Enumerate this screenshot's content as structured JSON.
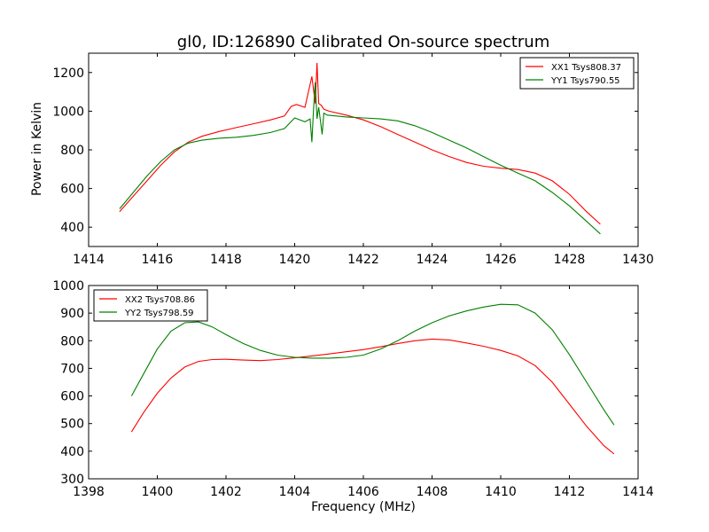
{
  "figure": {
    "title": "gl0, ID:126890 Calibrated On-source spectrum",
    "ylabel": "Power in Kelvin",
    "xlabel": "Frequency (MHz)"
  },
  "chart_data": [
    {
      "type": "line",
      "title": "gl0, ID:126890 Calibrated On-source spectrum",
      "ylabel": "Power in Kelvin",
      "xlim": [
        1414,
        1430
      ],
      "ylim": [
        300,
        1300
      ],
      "xticks": [
        1414,
        1416,
        1418,
        1420,
        1422,
        1424,
        1426,
        1428,
        1430
      ],
      "yticks": [
        400,
        600,
        800,
        1000,
        1200
      ],
      "grid": false,
      "legend": "top-right",
      "series": [
        {
          "name": "XX1 Tsys808.37",
          "color": "#ff0000",
          "x": [
            1414.9,
            1415.3,
            1415.7,
            1416.1,
            1416.5,
            1416.9,
            1417.3,
            1417.8,
            1418.3,
            1418.8,
            1419.3,
            1419.7,
            1419.9,
            1420.05,
            1420.3,
            1420.5,
            1420.6,
            1420.65,
            1420.7,
            1420.78,
            1420.85,
            1421.0,
            1421.5,
            1422.0,
            1422.5,
            1423.0,
            1423.5,
            1424.0,
            1424.5,
            1425.0,
            1425.5,
            1426.0,
            1426.5,
            1427.0,
            1427.5,
            1428.0,
            1428.5,
            1428.9
          ],
          "y": [
            480,
            560,
            640,
            720,
            790,
            840,
            870,
            895,
            915,
            935,
            955,
            975,
            1025,
            1035,
            1020,
            1180,
            1040,
            1250,
            1040,
            1030,
            1010,
            1000,
            980,
            955,
            920,
            880,
            840,
            800,
            765,
            735,
            715,
            705,
            698,
            680,
            640,
            570,
            480,
            415
          ]
        },
        {
          "name": "YY1 Tsys790.55",
          "color": "#008000",
          "x": [
            1414.9,
            1415.3,
            1415.7,
            1416.1,
            1416.5,
            1416.9,
            1417.3,
            1417.8,
            1418.3,
            1418.8,
            1419.3,
            1419.7,
            1420.0,
            1420.3,
            1420.45,
            1420.5,
            1420.55,
            1420.6,
            1420.65,
            1420.7,
            1420.8,
            1420.85,
            1420.95,
            1421.5,
            1422.0,
            1422.5,
            1423.0,
            1423.5,
            1424.0,
            1424.5,
            1425.0,
            1425.5,
            1426.0,
            1426.5,
            1427.0,
            1427.5,
            1428.0,
            1428.5,
            1428.9
          ],
          "y": [
            495,
            580,
            665,
            740,
            800,
            835,
            850,
            860,
            865,
            875,
            890,
            910,
            965,
            945,
            960,
            840,
            1010,
            1150,
            960,
            1020,
            880,
            990,
            980,
            970,
            965,
            960,
            950,
            925,
            890,
            850,
            810,
            765,
            720,
            680,
            640,
            580,
            510,
            430,
            365
          ]
        }
      ]
    },
    {
      "type": "line",
      "xlabel": "Frequency (MHz)",
      "xlim": [
        1398,
        1414
      ],
      "ylim": [
        300,
        1000
      ],
      "xticks": [
        1398,
        1400,
        1402,
        1404,
        1406,
        1408,
        1410,
        1412,
        1414
      ],
      "yticks": [
        300,
        400,
        500,
        600,
        700,
        800,
        900,
        1000
      ],
      "grid": false,
      "legend": "top-left",
      "series": [
        {
          "name": "XX2 Tsys708.86",
          "color": "#ff0000",
          "x": [
            1399.25,
            1399.6,
            1400.0,
            1400.4,
            1400.8,
            1401.2,
            1401.6,
            1402.0,
            1402.5,
            1403.0,
            1403.5,
            1404.0,
            1404.5,
            1405.0,
            1405.5,
            1406.0,
            1406.5,
            1407.0,
            1407.5,
            1408.0,
            1408.5,
            1409.0,
            1409.5,
            1410.0,
            1410.5,
            1411.0,
            1411.5,
            1412.0,
            1412.5,
            1413.0,
            1413.3
          ],
          "y": [
            470,
            540,
            610,
            665,
            705,
            725,
            732,
            733,
            730,
            728,
            732,
            738,
            745,
            752,
            760,
            768,
            778,
            790,
            800,
            806,
            803,
            792,
            780,
            765,
            745,
            710,
            650,
            570,
            490,
            420,
            390
          ]
        },
        {
          "name": "YY2 Tsys798.59",
          "color": "#008000",
          "x": [
            1399.25,
            1399.6,
            1400.0,
            1400.4,
            1400.8,
            1401.2,
            1401.6,
            1402.0,
            1402.5,
            1403.0,
            1403.5,
            1404.0,
            1404.5,
            1405.0,
            1405.5,
            1406.0,
            1406.5,
            1407.0,
            1407.5,
            1408.0,
            1408.5,
            1409.0,
            1409.5,
            1410.0,
            1410.5,
            1411.0,
            1411.5,
            1412.0,
            1412.5,
            1413.0,
            1413.3
          ],
          "y": [
            600,
            680,
            770,
            835,
            865,
            868,
            850,
            822,
            790,
            765,
            748,
            740,
            737,
            737,
            740,
            748,
            770,
            800,
            835,
            865,
            890,
            908,
            922,
            932,
            930,
            900,
            840,
            750,
            650,
            550,
            495
          ]
        }
      ]
    }
  ]
}
